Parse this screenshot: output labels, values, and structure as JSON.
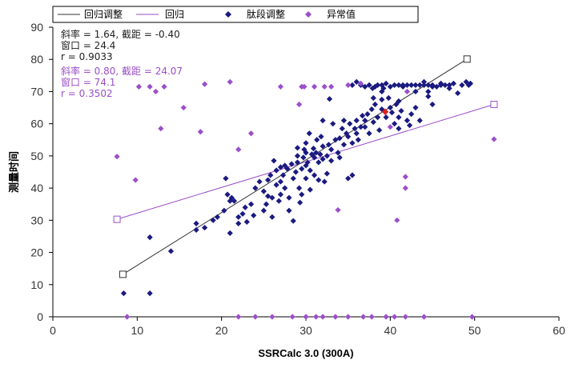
{
  "chart_data": {
    "type": "scatter",
    "xlabel": "SSRCalc 3.0 (300A)",
    "ylabel": "测量时间",
    "xlim": [
      0,
      60
    ],
    "ylim": [
      0,
      90
    ],
    "xticks": [
      0,
      10,
      20,
      30,
      40,
      50,
      60
    ],
    "yticks": [
      0,
      10,
      20,
      30,
      40,
      50,
      60,
      70,
      80,
      90
    ],
    "grid": false,
    "legend": {
      "placement": "top",
      "entries": [
        {
          "label": "回归调整",
          "kind": "line",
          "color": "#333333"
        },
        {
          "label": "回归",
          "kind": "line",
          "color": "#9b4fc9"
        },
        {
          "label": "肽段调整",
          "kind": "diamond",
          "color": "#1a1a80"
        },
        {
          "label": "异常值",
          "kind": "diamond",
          "color": "#9b4fc9"
        }
      ]
    },
    "stats_adjusted": {
      "line1": "斜率 = 1.64, 截距 = -0.40",
      "line2": "窗口 = 24.4",
      "line3": "r = 0.9033",
      "color": "#222222"
    },
    "stats_regression": {
      "line1": "斜率 = 0.80, 截距 = 24.07",
      "line2": "窗口 = 74.1",
      "line3": "r = 0.3502",
      "color": "#9b4fc9"
    },
    "regression_adjusted": {
      "x": [
        8.3,
        49.1
      ],
      "y": [
        13.2,
        80.1
      ],
      "color": "#333333"
    },
    "regression": {
      "x": [
        7.6,
        52.3
      ],
      "y": [
        30.3,
        66.0
      ],
      "color": "#9b4fc9"
    },
    "highlight_point": {
      "x": 39.4,
      "y": 63.7,
      "color": "#e02020"
    },
    "series": [
      {
        "name": "肽段调整",
        "color": "#1a1a80",
        "points": [
          [
            8.4,
            7.3
          ],
          [
            11.5,
            7.3
          ],
          [
            11.5,
            24.7
          ],
          [
            14,
            20.4
          ],
          [
            17,
            27
          ],
          [
            17,
            29
          ],
          [
            18,
            27.7
          ],
          [
            19,
            30
          ],
          [
            19.5,
            31
          ],
          [
            20.3,
            33
          ],
          [
            20.5,
            43
          ],
          [
            20.7,
            38
          ],
          [
            21,
            26
          ],
          [
            21,
            36
          ],
          [
            21.2,
            37
          ],
          [
            21.5,
            36
          ],
          [
            22,
            29
          ],
          [
            22,
            31
          ],
          [
            22.5,
            32
          ],
          [
            22.8,
            34
          ],
          [
            23,
            29.5
          ],
          [
            23.5,
            35
          ],
          [
            23.8,
            31.5
          ],
          [
            24,
            40
          ],
          [
            24.5,
            42
          ],
          [
            25,
            33
          ],
          [
            25,
            39
          ],
          [
            25.3,
            35
          ],
          [
            25.5,
            37.5
          ],
          [
            25.5,
            42.5
          ],
          [
            25.8,
            44
          ],
          [
            26,
            31
          ],
          [
            26,
            37
          ],
          [
            26.2,
            48.5
          ],
          [
            26.5,
            41
          ],
          [
            26.5,
            45.5
          ],
          [
            26.8,
            36
          ],
          [
            27,
            38
          ],
          [
            27,
            42
          ],
          [
            27,
            46.5
          ],
          [
            27.3,
            44
          ],
          [
            27.5,
            47
          ],
          [
            27.5,
            40
          ],
          [
            27.8,
            46
          ],
          [
            28,
            37
          ],
          [
            28,
            33
          ],
          [
            28.3,
            47.5
          ],
          [
            28.5,
            29.8
          ],
          [
            28.5,
            43
          ],
          [
            28.8,
            45
          ],
          [
            29,
            48
          ],
          [
            29,
            52.5
          ],
          [
            29,
            50
          ],
          [
            29.2,
            40
          ],
          [
            29.3,
            35.5
          ],
          [
            29.5,
            38
          ],
          [
            29.5,
            46
          ],
          [
            29.7,
            49.5
          ],
          [
            29.8,
            52
          ],
          [
            30,
            43
          ],
          [
            30,
            47
          ],
          [
            30,
            51
          ],
          [
            30,
            54
          ],
          [
            30.2,
            48
          ],
          [
            30.4,
            57
          ],
          [
            30.5,
            39.5
          ],
          [
            30.5,
            45.5
          ],
          [
            30.7,
            50.5
          ],
          [
            30.9,
            52.3
          ],
          [
            31,
            49.5
          ],
          [
            31,
            44
          ],
          [
            31.2,
            51
          ],
          [
            31.3,
            55
          ],
          [
            31.5,
            48
          ],
          [
            31.5,
            42.5
          ],
          [
            31.7,
            50.5
          ],
          [
            31.8,
            56
          ],
          [
            32,
            53
          ],
          [
            32,
            61
          ],
          [
            32,
            49
          ],
          [
            32.2,
            42
          ],
          [
            32.5,
            44.5
          ],
          [
            32.5,
            50
          ],
          [
            32.7,
            53.5
          ],
          [
            33,
            52
          ],
          [
            33,
            48.5
          ],
          [
            33.2,
            60
          ],
          [
            33.5,
            55
          ],
          [
            33.8,
            51
          ],
          [
            34,
            49.5
          ],
          [
            34,
            55.5
          ],
          [
            34.3,
            58.5
          ],
          [
            34.5,
            53.5
          ],
          [
            34.8,
            57
          ],
          [
            35,
            56
          ],
          [
            35,
            43
          ],
          [
            35.2,
            60
          ],
          [
            35.5,
            54
          ],
          [
            35.8,
            58.5
          ],
          [
            36,
            57
          ],
          [
            36,
            61
          ],
          [
            36.2,
            55
          ],
          [
            36.5,
            59
          ],
          [
            36.7,
            62.5
          ],
          [
            37,
            59
          ],
          [
            37,
            61
          ],
          [
            37.3,
            63
          ],
          [
            37.5,
            57
          ],
          [
            37.8,
            64.5
          ],
          [
            38,
            60.5
          ],
          [
            38.2,
            66
          ],
          [
            38.5,
            62
          ],
          [
            38.7,
            58
          ],
          [
            39,
            64.5
          ],
          [
            39,
            67.5
          ],
          [
            39.2,
            71
          ],
          [
            39.5,
            62
          ],
          [
            39.8,
            68
          ],
          [
            40,
            65
          ],
          [
            40.2,
            63.5
          ],
          [
            40.5,
            60
          ],
          [
            40.7,
            66
          ],
          [
            41,
            62
          ],
          [
            41,
            58.5
          ],
          [
            41.3,
            64
          ],
          [
            41.5,
            71.5
          ],
          [
            42,
            61
          ],
          [
            42.3,
            59.5
          ],
          [
            42.5,
            63
          ],
          [
            43,
            70
          ],
          [
            43.5,
            61
          ],
          [
            44,
            72
          ],
          [
            44.5,
            68.5
          ],
          [
            45,
            72
          ],
          [
            45.5,
            71.5
          ],
          [
            46,
            72
          ],
          [
            46.5,
            72
          ],
          [
            47,
            71
          ],
          [
            47.5,
            72.5
          ],
          [
            48,
            69.5
          ],
          [
            48.5,
            72
          ],
          [
            49,
            73
          ],
          [
            49.3,
            72
          ],
          [
            49.5,
            72.5
          ],
          [
            32.8,
            67.7
          ],
          [
            34.5,
            61
          ],
          [
            35.5,
            72
          ],
          [
            35.5,
            44
          ],
          [
            36,
            73
          ],
          [
            36.5,
            72
          ],
          [
            37,
            71.5
          ],
          [
            37.5,
            72
          ],
          [
            37.9,
            71
          ],
          [
            38.2,
            71.5
          ],
          [
            38.5,
            72
          ],
          [
            39,
            72
          ],
          [
            39.5,
            72.5
          ],
          [
            40,
            71.5
          ],
          [
            40.5,
            72
          ],
          [
            41,
            72
          ],
          [
            41.5,
            72
          ],
          [
            42,
            72
          ],
          [
            42.5,
            72
          ],
          [
            43,
            72
          ],
          [
            43.5,
            72
          ],
          [
            44,
            73
          ],
          [
            44.5,
            72
          ],
          [
            45,
            71.5
          ],
          [
            46,
            72.5
          ],
          [
            47,
            72
          ],
          [
            41,
            67
          ],
          [
            43,
            65
          ],
          [
            45,
            66
          ],
          [
            44.5,
            70
          ],
          [
            38,
            68
          ],
          [
            39,
            70
          ]
        ]
      },
      {
        "name": "异常值",
        "color": "#9b4fc9",
        "points": [
          [
            7.6,
            49.8
          ],
          [
            9.8,
            42.5
          ],
          [
            10.2,
            71.5
          ],
          [
            11.5,
            71.5
          ],
          [
            12.2,
            70
          ],
          [
            12.8,
            58.5
          ],
          [
            13.2,
            71.5
          ],
          [
            15.5,
            65
          ],
          [
            17.5,
            57.5
          ],
          [
            18,
            72.3
          ],
          [
            21,
            73
          ],
          [
            22,
            52
          ],
          [
            23.5,
            57
          ],
          [
            27,
            71.5
          ],
          [
            29.5,
            71.5
          ],
          [
            29.8,
            71.5
          ],
          [
            29.2,
            66
          ],
          [
            31,
            71.5
          ],
          [
            32.2,
            71.5
          ],
          [
            33,
            71.5
          ],
          [
            33.8,
            33.2
          ],
          [
            35,
            72
          ],
          [
            36.5,
            72.5
          ],
          [
            40,
            59
          ],
          [
            40.8,
            30
          ],
          [
            41.8,
            43.5
          ],
          [
            41.8,
            40
          ],
          [
            42,
            70
          ],
          [
            52.3,
            55.2
          ],
          [
            8.8,
            0
          ],
          [
            22,
            0
          ],
          [
            24,
            0
          ],
          [
            26,
            0
          ],
          [
            28.4,
            0
          ],
          [
            30,
            0
          ],
          [
            31.2,
            0
          ],
          [
            32,
            0
          ],
          [
            33.5,
            0
          ],
          [
            35,
            0
          ],
          [
            36.8,
            0
          ],
          [
            37.8,
            0
          ],
          [
            39.5,
            0
          ],
          [
            40.5,
            0
          ],
          [
            41.8,
            0
          ],
          [
            44,
            0
          ],
          [
            49.7,
            0
          ]
        ]
      }
    ]
  }
}
